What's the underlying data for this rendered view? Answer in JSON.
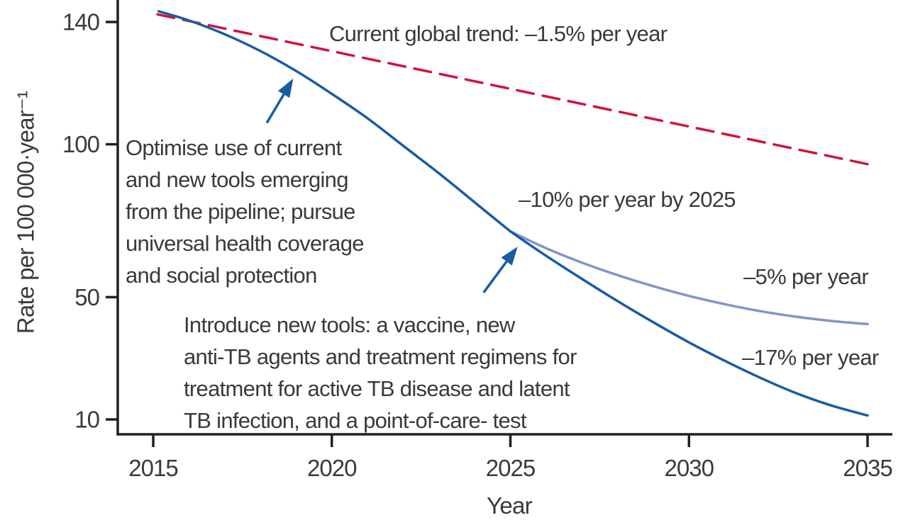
{
  "chart_data": {
    "type": "line",
    "title": "",
    "xlabel": "Year",
    "ylabel": "Rate per 100 000·year⁻¹",
    "x_ticks": [
      2015,
      2020,
      2025,
      2030,
      2035
    ],
    "y_ticks": [
      140,
      100,
      50,
      10
    ],
    "x_range": [
      2014,
      2035.7
    ],
    "y_range": [
      4,
      147
    ],
    "grid": false,
    "legend_position": "none",
    "axis_color": "#231f20",
    "text_color": "#3a3a3a",
    "series": [
      {
        "name": "current-global-trend",
        "label": "Current global trend: –1.5% per year",
        "color": "#d2123e",
        "style": "dashed",
        "x": [
          2015.12,
          2035
        ],
        "y": [
          142.5,
          93.5
        ]
      },
      {
        "name": "optimise-current-and-new-tools",
        "label": "–10% per year by 2025",
        "color": "#185ca4",
        "style": "solid",
        "x": [
          2015.15,
          2016,
          2017,
          2018,
          2019,
          2020,
          2021,
          2022,
          2023,
          2024,
          2025
        ],
        "y": [
          143.5,
          140.5,
          136,
          130.5,
          124,
          116.5,
          108.5,
          99.5,
          90.5,
          81,
          71.5
        ]
      },
      {
        "name": "without-new-tools",
        "label": "–5% per year",
        "color": "#8494c6",
        "style": "solid",
        "x": [
          2025,
          2026,
          2027,
          2028,
          2029,
          2030,
          2031,
          2032,
          2033,
          2034,
          2035
        ],
        "y": [
          71.5,
          66,
          61.3,
          57.2,
          53.6,
          50.4,
          47.7,
          45.4,
          43.6,
          42.2,
          41.2
        ]
      },
      {
        "name": "introduce-new-tools",
        "label": "–17% per year",
        "color": "#185ca4",
        "style": "solid",
        "x": [
          2025,
          2026,
          2027,
          2028,
          2029,
          2030,
          2031,
          2032,
          2033,
          2034,
          2035
        ],
        "y": [
          71.5,
          63.5,
          56,
          48.7,
          41.8,
          35.2,
          29.2,
          23.6,
          18.6,
          14.5,
          11.3
        ]
      }
    ],
    "annotations": {
      "trend_label": "Current global trend: –1.5% per year",
      "optimise_note": "Optimise use of current\nand new tools emerging\nfrom the pipeline; pursue\nuniversal health coverage\nand social protection",
      "rate10_label": "–10% per year by 2025",
      "rate5_label": "–5% per year",
      "rate17_label": "–17% per year",
      "introduce_note": "Introduce new tools: a vaccine, new\nanti-TB agents and treatment regimens for\ntreatment for active TB disease and latent\nTB infection, and a point-of-care- test",
      "arrow_color": "#185ca4",
      "arrows": [
        {
          "name": "optimise-arrow",
          "from": {
            "year": 2018.18,
            "rate": 107
          },
          "to": {
            "year": 2018.92,
            "rate": 121.5
          }
        },
        {
          "name": "introduce-arrow",
          "from": {
            "year": 2024.25,
            "rate": 51.5
          },
          "to": {
            "year": 2025.2,
            "rate": 66.5
          }
        }
      ]
    }
  }
}
